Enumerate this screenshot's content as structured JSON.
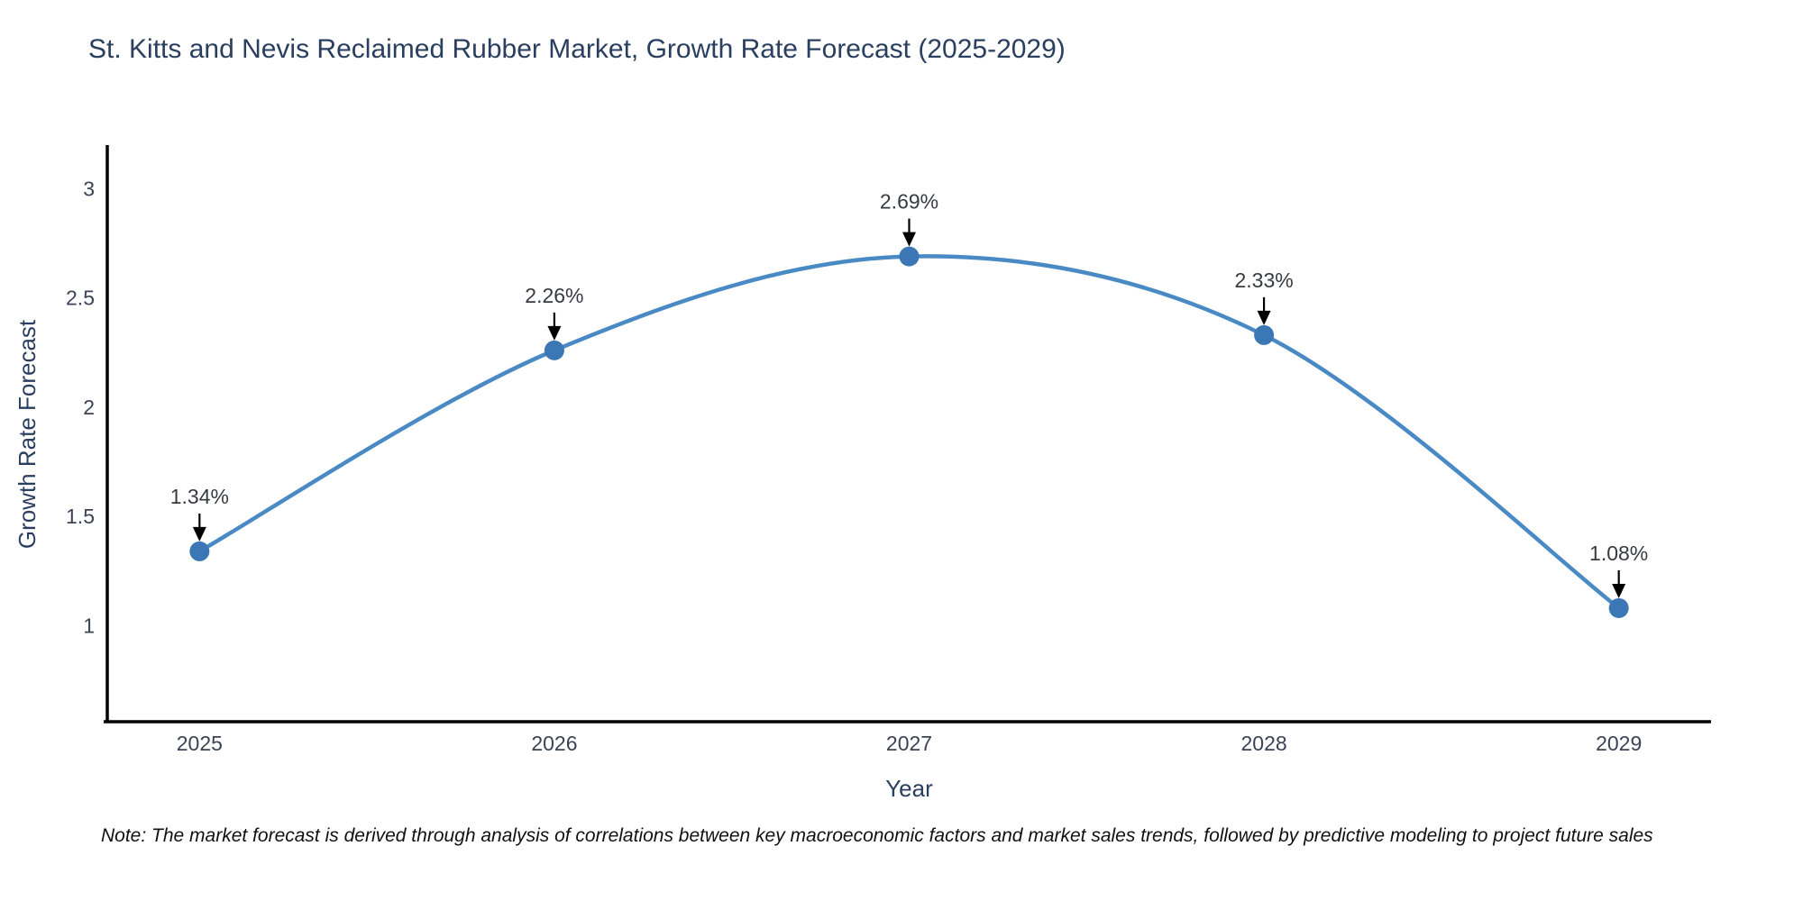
{
  "chart_data": {
    "type": "line",
    "title": "St. Kitts and Nevis Reclaimed Rubber Market, Growth Rate Forecast (2025-2029)",
    "xlabel": "Year",
    "ylabel": "Growth Rate Forecast",
    "categories": [
      "2025",
      "2026",
      "2027",
      "2028",
      "2029"
    ],
    "values": [
      1.34,
      2.26,
      2.69,
      2.33,
      1.08
    ],
    "point_labels": [
      "1.34%",
      "2.26%",
      "2.69%",
      "2.33%",
      "1.08%"
    ],
    "yticks": [
      "1",
      "1.5",
      "2",
      "2.5",
      "3"
    ],
    "ytick_values": [
      1,
      1.5,
      2,
      2.5,
      3
    ],
    "ylim": [
      0.56,
      3.2
    ],
    "xlim": [
      2024.74,
      2029.26
    ],
    "grid": false,
    "legend": "none",
    "line_shape": "spline",
    "colors": {
      "line": "#4a8ac4",
      "marker": "#3a77b4",
      "axis_line": "#000000",
      "tick_label": "#3b4455",
      "title_text": "#2a3f5f",
      "annotation_text": "#363b42",
      "arrow": "#000000",
      "note_text": "#111111",
      "background": "#ffffff"
    }
  },
  "note": "Note: The market forecast is derived through analysis of correlations between key macroeconomic factors and market sales trends, followed by predictive modeling to project future sales"
}
